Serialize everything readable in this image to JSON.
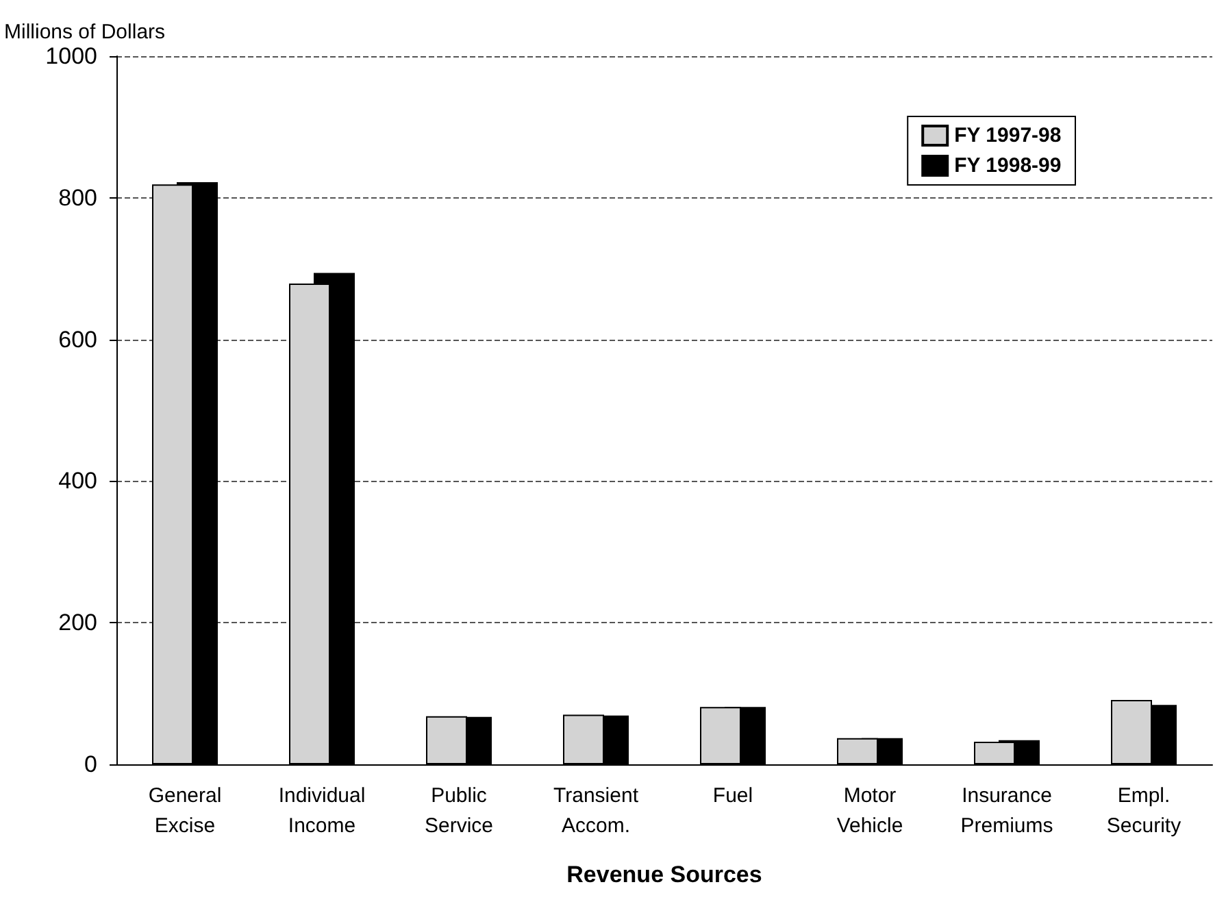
{
  "chart_data": {
    "type": "bar",
    "ylabel": "Millions of Dollars",
    "xlabel": "Revenue Sources",
    "categories": [
      "General\nExcise",
      "Individual\nIncome",
      "Public\nService",
      "Transient\nAccom.",
      "Fuel",
      "Motor\nVehicle",
      "Insurance\nPremiums",
      "Empl.\nSecurity"
    ],
    "series": [
      {
        "name": "FY 1997-98",
        "color": "#d3d3d3",
        "values": [
          819,
          679,
          68,
          70,
          81,
          37,
          32,
          91
        ]
      },
      {
        "name": "FY 1998-99",
        "color": "#000000",
        "values": [
          822,
          694,
          67,
          69,
          81,
          37,
          34,
          84
        ]
      }
    ],
    "ylim": [
      0,
      1000
    ],
    "yticks": [
      0,
      200,
      400,
      600,
      800,
      1000
    ],
    "grid": "y",
    "legend": "top right"
  }
}
